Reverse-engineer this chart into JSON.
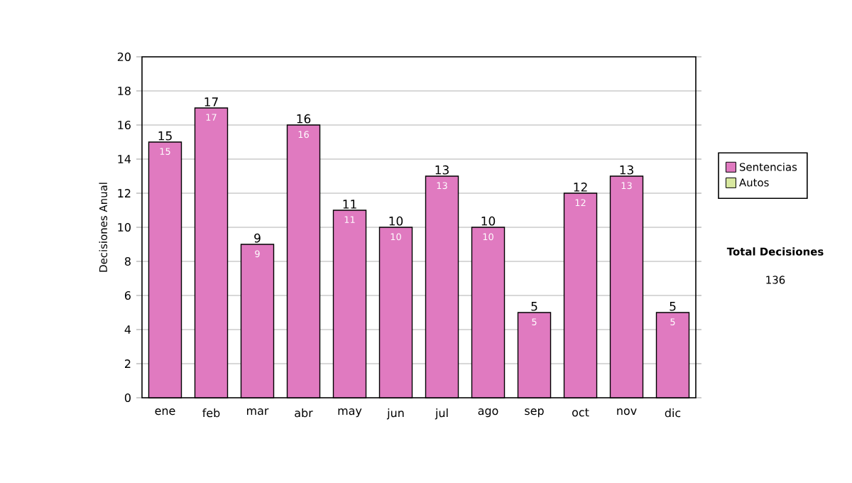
{
  "chart_data": {
    "type": "bar",
    "stacked": true,
    "ylabel": "Decisiones Anual",
    "categories": [
      "ene",
      "feb",
      "mar",
      "abr",
      "may",
      "jun",
      "jul",
      "ago",
      "sep",
      "oct",
      "nov",
      "dic"
    ],
    "series": [
      {
        "name": "Sentencias",
        "color": "#e07ac0",
        "values": [
          15,
          17,
          9,
          16,
          11,
          10,
          13,
          10,
          5,
          12,
          13,
          5
        ],
        "value_labels": [
          "15",
          "17",
          "9",
          "16",
          "11",
          "10",
          "13",
          "10",
          "5",
          "12",
          "13",
          "5"
        ]
      },
      {
        "name": "Autos",
        "color": "#d8e8a0",
        "values": [
          0,
          0,
          0,
          0,
          0,
          0,
          0,
          0,
          0,
          0,
          0,
          0
        ]
      }
    ],
    "totals": [
      "15",
      "17",
      "9",
      "16",
      "11",
      "10",
      "13",
      "10",
      "5",
      "12",
      "13",
      "5"
    ],
    "ylim": [
      0,
      20
    ],
    "yticks": [
      0,
      2,
      4,
      6,
      8,
      10,
      12,
      14,
      16,
      18,
      20
    ],
    "grid": "y",
    "legend": "right",
    "annotations": [
      "Total Decisiones",
      "136"
    ]
  }
}
